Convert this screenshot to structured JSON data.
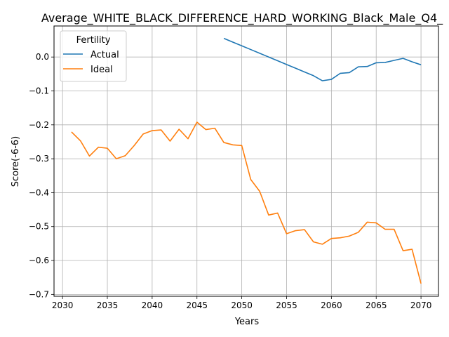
{
  "chart_data": {
    "type": "line",
    "title": "Average_WHITE_BLACK_DIFFERENCE_HARD_WORKING_Black_Male_Q4_",
    "xlabel": "Years",
    "ylabel": "Score(-6-6)",
    "xlim": [
      2029.05,
      2071.95
    ],
    "ylim": [
      -0.7055,
      0.0915
    ],
    "xticks": [
      2030,
      2035,
      2040,
      2045,
      2050,
      2055,
      2060,
      2065,
      2070
    ],
    "yticks": [
      -0.7,
      -0.6,
      -0.5,
      -0.4,
      -0.3,
      -0.2,
      -0.1,
      0.0
    ],
    "grid": true,
    "legend": {
      "title": "Fertility",
      "placement": "top-left"
    },
    "series": [
      {
        "name": "Actual",
        "color": "#1f77b4",
        "x": [
          2048,
          2049,
          2050,
          2051,
          2052,
          2053,
          2054,
          2055,
          2056,
          2057,
          2058,
          2059,
          2060,
          2061,
          2062,
          2063,
          2064,
          2065,
          2066,
          2067,
          2068,
          2069,
          2070
        ],
        "y": [
          0.055,
          0.044,
          0.033,
          0.022,
          0.011,
          0.0,
          -0.011,
          -0.022,
          -0.033,
          -0.044,
          -0.055,
          -0.07,
          -0.066,
          -0.048,
          -0.046,
          -0.029,
          -0.028,
          -0.017,
          -0.016,
          -0.01,
          -0.004,
          -0.014,
          -0.023
        ]
      },
      {
        "name": "Ideal",
        "color": "#ff7f0e",
        "x": [
          2031,
          2032,
          2033,
          2034,
          2035,
          2036,
          2037,
          2038,
          2039,
          2040,
          2041,
          2042,
          2043,
          2044,
          2045,
          2046,
          2047,
          2048,
          2049,
          2050,
          2051,
          2052,
          2053,
          2054,
          2055,
          2056,
          2057,
          2058,
          2059,
          2060,
          2061,
          2062,
          2063,
          2064,
          2065,
          2066,
          2067,
          2068,
          2069,
          2070
        ],
        "y": [
          -0.221,
          -0.247,
          -0.292,
          -0.266,
          -0.269,
          -0.3,
          -0.291,
          -0.261,
          -0.227,
          -0.217,
          -0.215,
          -0.248,
          -0.213,
          -0.241,
          -0.192,
          -0.214,
          -0.21,
          -0.252,
          -0.259,
          -0.261,
          -0.361,
          -0.396,
          -0.466,
          -0.46,
          -0.521,
          -0.512,
          -0.509,
          -0.545,
          -0.552,
          -0.535,
          -0.533,
          -0.528,
          -0.517,
          -0.487,
          -0.489,
          -0.508,
          -0.508,
          -0.571,
          -0.567,
          -0.668
        ]
      }
    ]
  }
}
